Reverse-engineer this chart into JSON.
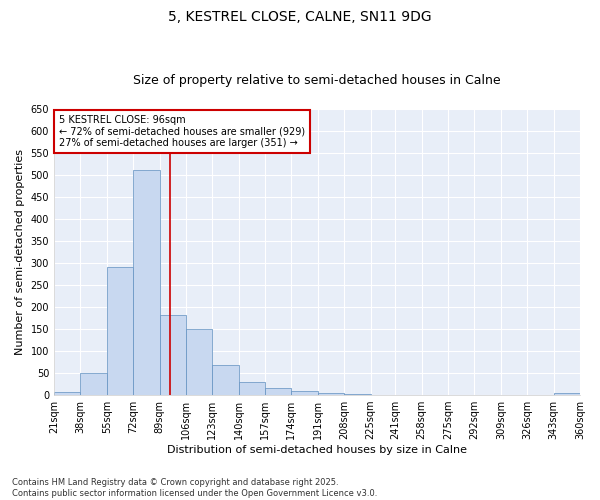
{
  "title": "5, KESTREL CLOSE, CALNE, SN11 9DG",
  "subtitle": "Size of property relative to semi-detached houses in Calne",
  "xlabel": "Distribution of semi-detached houses by size in Calne",
  "ylabel": "Number of semi-detached properties",
  "bins": [
    21,
    38,
    55,
    72,
    89,
    106,
    123,
    140,
    157,
    174,
    191,
    208,
    225,
    241,
    258,
    275,
    292,
    309,
    326,
    343,
    360
  ],
  "values": [
    7,
    50,
    290,
    512,
    183,
    150,
    68,
    30,
    15,
    10,
    4,
    2,
    1,
    1,
    1,
    1,
    0,
    0,
    0,
    4
  ],
  "bar_color": "#c8d8f0",
  "bar_edge_color": "#6090c0",
  "subject_value": 96,
  "subject_line_color": "#cc0000",
  "annotation_text": "5 KESTREL CLOSE: 96sqm\n← 72% of semi-detached houses are smaller (929)\n27% of semi-detached houses are larger (351) →",
  "annotation_box_color": "#ffffff",
  "annotation_box_edge": "#cc0000",
  "ylim": [
    0,
    650
  ],
  "yticks": [
    0,
    50,
    100,
    150,
    200,
    250,
    300,
    350,
    400,
    450,
    500,
    550,
    600,
    650
  ],
  "bin_labels": [
    "21sqm",
    "38sqm",
    "55sqm",
    "72sqm",
    "89sqm",
    "106sqm",
    "123sqm",
    "140sqm",
    "157sqm",
    "174sqm",
    "191sqm",
    "208sqm",
    "225sqm",
    "241sqm",
    "258sqm",
    "275sqm",
    "292sqm",
    "309sqm",
    "326sqm",
    "343sqm",
    "360sqm"
  ],
  "footnote": "Contains HM Land Registry data © Crown copyright and database right 2025.\nContains public sector information licensed under the Open Government Licence v3.0.",
  "bg_color": "#ffffff",
  "plot_bg_color": "#e8eef8",
  "grid_color": "#ffffff",
  "title_fontsize": 10,
  "subtitle_fontsize": 9,
  "tick_fontsize": 7,
  "label_fontsize": 8,
  "annot_fontsize": 7,
  "footnote_fontsize": 6
}
